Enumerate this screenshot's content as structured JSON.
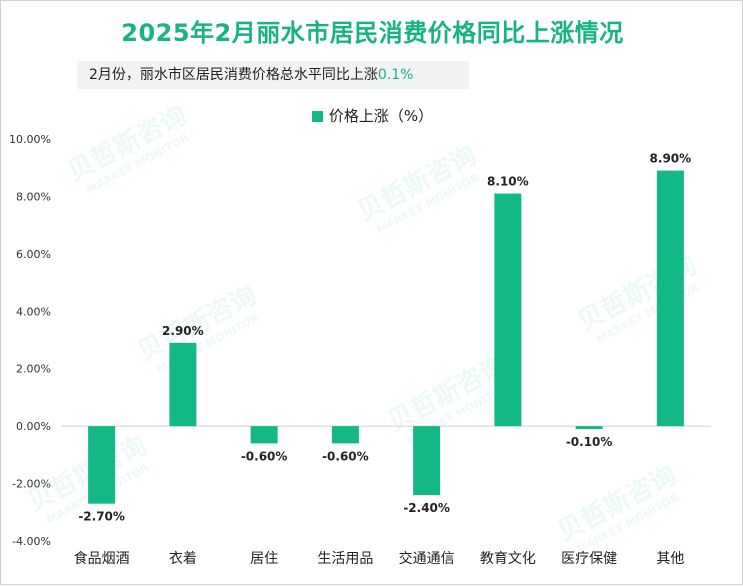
{
  "chart_data": {
    "type": "bar",
    "title": "2025年2月丽水市居民消费价格同比上涨情况",
    "subtitle_prefix": "2月份，丽水市区居民消费价格总水平同比上涨",
    "subtitle_value": "0.1%",
    "categories": [
      "食品烟酒",
      "衣着",
      "居住",
      "生活用品",
      "交通通信",
      "教育文化",
      "医疗保健",
      "其他"
    ],
    "series": [
      {
        "name": "价格上涨（%）",
        "values": [
          -2.7,
          2.9,
          -0.6,
          -0.6,
          -2.4,
          8.1,
          -0.1,
          8.9
        ]
      }
    ],
    "data_labels": [
      "-2.70%",
      "2.90%",
      "-0.60%",
      "-0.60%",
      "-2.40%",
      "8.10%",
      "-0.10%",
      "8.90%"
    ],
    "ylim": [
      -4,
      10
    ],
    "y_ticks": [
      10,
      8,
      6,
      4,
      2,
      0,
      -2,
      -4
    ],
    "y_tick_labels": [
      "10.00%",
      "8.00%",
      "6.00%",
      "4.00%",
      "2.00%",
      "0.00%",
      "-2.00%",
      "-4.00%"
    ],
    "legend_position": "top-center",
    "grid": false,
    "colors": {
      "bar": "#12b886",
      "title": "#17b386",
      "axis": "#d0d0d0"
    }
  },
  "watermark": {
    "brand": "贝哲斯咨询",
    "tagline": "MARKET MONITOR"
  }
}
